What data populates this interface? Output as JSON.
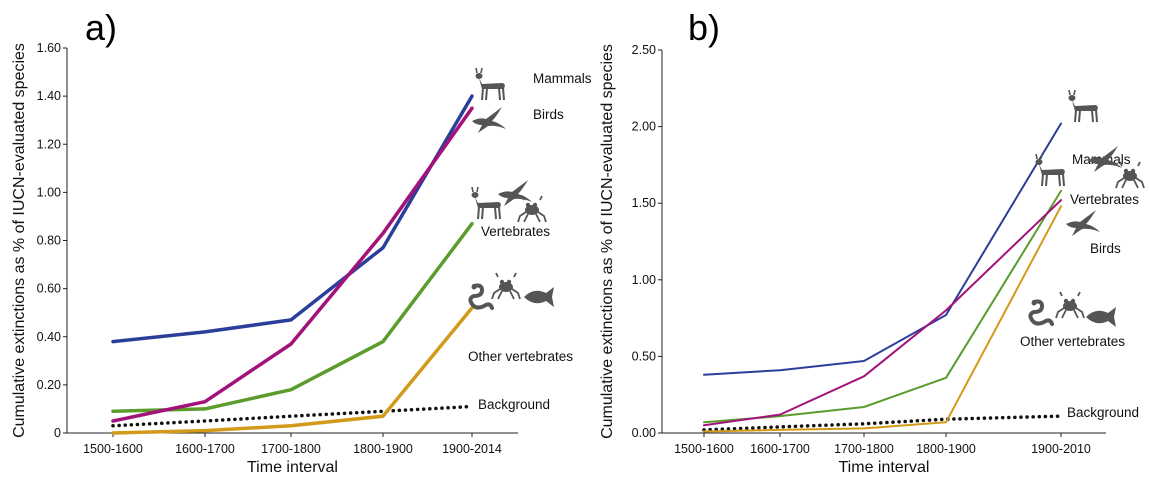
{
  "chart_data": [
    {
      "panel_label": "a)",
      "type": "line",
      "categories": [
        "1500-1600",
        "1600-1700",
        "1700-1800",
        "1800-1900",
        "1900-2014"
      ],
      "xlabel": "Time interval",
      "ylabel": "Cumulative extinctions as % of IUCN-evaluated species",
      "ylim": [
        0,
        1.6
      ],
      "yticks": [
        "0",
        "0.20",
        "0.40",
        "0.60",
        "0.80",
        "1.00",
        "1.20",
        "1.40",
        "1.60"
      ],
      "grid": false,
      "series": [
        {
          "name": "Mammals",
          "color": "#2b3f9a",
          "values": [
            0.38,
            0.42,
            0.47,
            0.77,
            1.4
          ]
        },
        {
          "name": "Birds",
          "color": "#a3127a",
          "values": [
            0.05,
            0.13,
            0.37,
            0.83,
            1.35
          ]
        },
        {
          "name": "Vertebrates",
          "color": "#5b9c2c",
          "values": [
            0.09,
            0.1,
            0.18,
            0.38,
            0.87
          ]
        },
        {
          "name": "Other vertebrates",
          "color": "#d29a1a",
          "values": [
            0.0,
            0.01,
            0.03,
            0.07,
            0.52
          ]
        },
        {
          "name": "Background",
          "color": "#111111",
          "dotted": true,
          "values": [
            0.03,
            0.05,
            0.07,
            0.09,
            0.11
          ]
        }
      ]
    },
    {
      "panel_label": "b)",
      "type": "line",
      "categories": [
        "1500-1600",
        "1600-1700",
        "1700-1800",
        "1800-1900",
        "1900-2010"
      ],
      "xlabel": "Time interval",
      "ylabel": "Cumulative extinctions as % of IUCN-evaluated species",
      "ylim": [
        0,
        2.5
      ],
      "yticks": [
        "0.00",
        "0.50",
        "1.00",
        "1.50",
        "2.00",
        "2.50"
      ],
      "grid": false,
      "series": [
        {
          "name": "Mammals",
          "color": "#2b3f9a",
          "values": [
            0.38,
            0.41,
            0.47,
            0.77,
            2.02
          ]
        },
        {
          "name": "Vertebrates",
          "color": "#5b9c2c",
          "values": [
            0.07,
            0.11,
            0.17,
            0.36,
            1.58
          ]
        },
        {
          "name": "Birds",
          "color": "#a3127a",
          "values": [
            0.05,
            0.12,
            0.37,
            0.8,
            1.52
          ]
        },
        {
          "name": "Other vertebrates",
          "color": "#d29a1a",
          "values": [
            0.01,
            0.02,
            0.03,
            0.07,
            1.48
          ]
        },
        {
          "name": "Background",
          "color": "#111111",
          "dotted": true,
          "values": [
            0.02,
            0.04,
            0.06,
            0.09,
            0.11
          ]
        }
      ]
    }
  ],
  "icons": {
    "mammal": "deer-icon",
    "bird": "bird-icon",
    "amphibian": "frog-icon",
    "reptile": "snake-icon",
    "fish": "fish-icon"
  }
}
